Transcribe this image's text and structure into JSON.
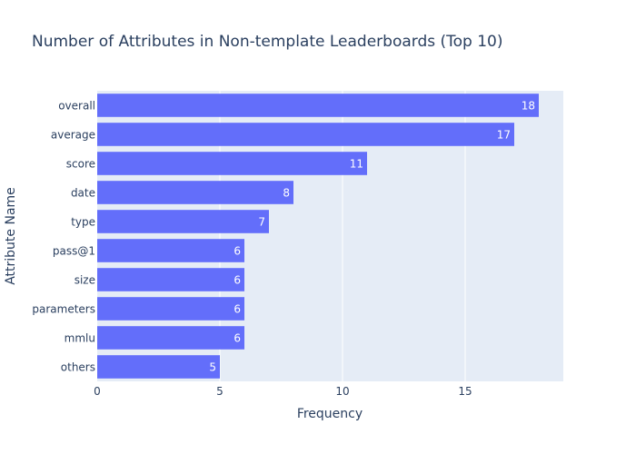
{
  "chart_data": {
    "type": "bar",
    "orientation": "horizontal",
    "title": "Number of Attributes in Non-template Leaderboards (Top 10)",
    "xlabel": "Frequency",
    "ylabel": "Attribute Name",
    "categories": [
      "overall",
      "average",
      "score",
      "date",
      "type",
      "pass@1",
      "size",
      "parameters",
      "mmlu",
      "others"
    ],
    "values": [
      18,
      17,
      11,
      8,
      7,
      6,
      6,
      6,
      6,
      5
    ],
    "xlim": [
      0,
      19
    ],
    "xticks": [
      0,
      5,
      10,
      15
    ],
    "grid": true,
    "legend": "none",
    "colors": {
      "bar": "#636efa",
      "plot_bg": "#e5ecf6",
      "grid": "#ffffff",
      "text": "#2a3f5f"
    }
  }
}
